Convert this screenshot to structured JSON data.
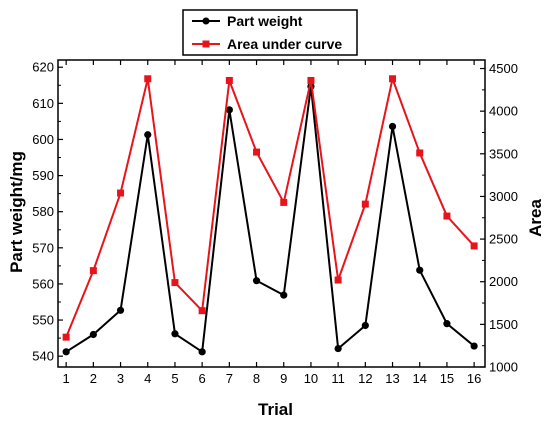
{
  "chart_data": {
    "type": "line",
    "xlabel": "Trial",
    "ylabel": "Part weight/mg",
    "ylabel_right": "Area",
    "x": [
      1,
      2,
      3,
      4,
      5,
      6,
      7,
      8,
      9,
      10,
      11,
      12,
      13,
      14,
      15,
      16
    ],
    "xlim": [
      1,
      16
    ],
    "ylim": [
      537,
      622
    ],
    "ylim_right": [
      1000,
      4600
    ],
    "yticks": [
      540,
      550,
      560,
      570,
      580,
      590,
      600,
      610,
      620
    ],
    "yticks_right": [
      1000,
      1500,
      2000,
      2500,
      3000,
      3500,
      4000,
      4500
    ],
    "legend_position": "top-center",
    "grid": false,
    "series": [
      {
        "name": "Part weight",
        "axis": "left",
        "color": "#000000",
        "marker": "circle",
        "values": [
          541.2,
          546.0,
          552.7,
          601.3,
          546.2,
          541.2,
          608.2,
          560.9,
          556.9,
          614.7,
          542.1,
          548.5,
          603.6,
          563.8,
          549.0,
          542.8
        ]
      },
      {
        "name": "Area under curve",
        "axis": "right",
        "color": "#e8141b",
        "marker": "square",
        "values": [
          1350,
          2130,
          3040,
          4380,
          1990,
          1660,
          4360,
          3520,
          2930,
          4360,
          2020,
          2910,
          4380,
          3510,
          2770,
          2420
        ]
      }
    ]
  }
}
